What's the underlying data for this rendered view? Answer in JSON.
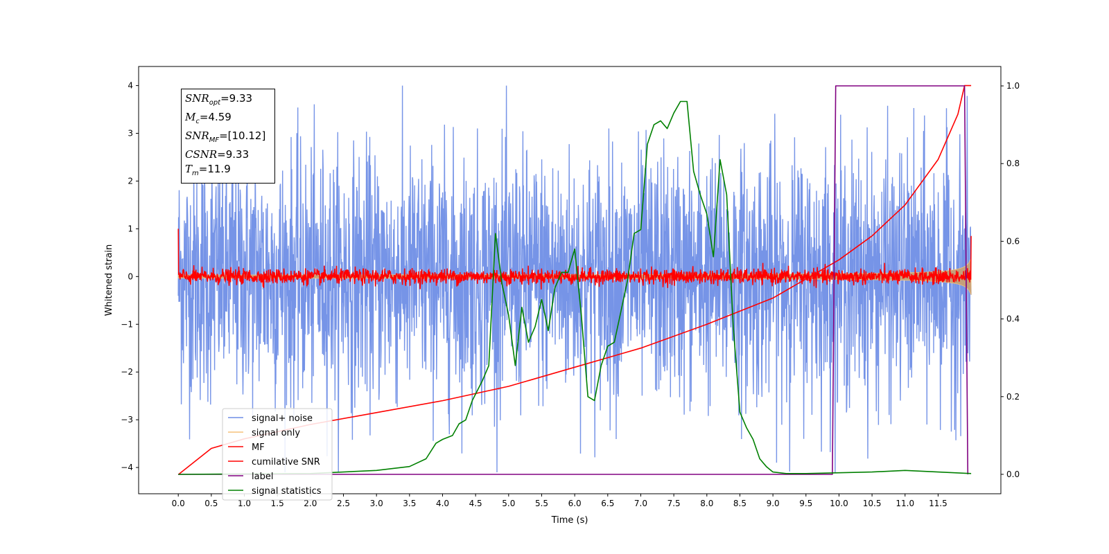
{
  "chart_data": {
    "type": "line",
    "xlabel": "Time (s)",
    "ylabel": "Whitened strain",
    "xlim": [
      -0.6,
      12.45
    ],
    "ylim": [
      -4.55,
      4.4
    ],
    "ylim_right": [
      -0.05,
      1.05
    ],
    "x_ticks": [
      "0.0",
      "0.5",
      "1.0",
      "1.5",
      "2.0",
      "2.5",
      "3.0",
      "3.5",
      "4.0",
      "4.5",
      "5.0",
      "5.5",
      "6.0",
      "6.5",
      "7.0",
      "7.5",
      "8.0",
      "8.5",
      "9.0",
      "9.5",
      "10.0",
      "10.5",
      "11.0",
      "11.5"
    ],
    "y_ticks": [
      "4",
      "3",
      "2",
      "1",
      "0",
      "−1",
      "−2",
      "−3",
      "−4"
    ],
    "y_ticks_right": [
      "1.0",
      "0.8",
      "0.6",
      "0.4",
      "0.2",
      "0.0"
    ],
    "legend_position": "lower-left",
    "legend": [
      {
        "label": "signal+ noise",
        "color": "#6f8ee6"
      },
      {
        "label": "signal only",
        "color": "#f5c27a"
      },
      {
        "label": "MF",
        "color": "#ff0000"
      },
      {
        "label": "cumilative SNR",
        "color": "#ff0000"
      },
      {
        "label": "label",
        "color": "#800080"
      },
      {
        "label": "signal statistics",
        "color": "#008000"
      }
    ],
    "series": [
      {
        "name": "signal+ noise",
        "axis": "left",
        "color": "#6f8ee6",
        "description_range": [
          -4.1,
          4.0
        ],
        "x_range": [
          0.0,
          12.0
        ]
      },
      {
        "name": "signal only",
        "axis": "left",
        "color": "#f5c27a",
        "envelope_end": 0.8,
        "x_range": [
          0.0,
          12.0
        ]
      },
      {
        "name": "MF",
        "axis": "left",
        "color": "#ff0000",
        "amplitude": 0.2,
        "x_range": [
          0.0,
          12.0
        ]
      },
      {
        "name": "cumilative SNR",
        "axis": "left",
        "color": "#ff0000",
        "x": [
          0.0,
          0.5,
          1.0,
          2.0,
          3.0,
          4.0,
          5.0,
          6.0,
          7.0,
          8.0,
          9.0,
          10.0,
          10.5,
          11.0,
          11.5,
          11.8,
          11.9,
          12.0
        ],
        "y": [
          -4.15,
          -3.6,
          -3.4,
          -3.1,
          -2.85,
          -2.6,
          -2.3,
          -1.9,
          -1.5,
          -1.0,
          -0.45,
          0.35,
          0.85,
          1.5,
          2.45,
          3.4,
          4.0,
          4.0
        ]
      },
      {
        "name": "label",
        "axis": "right",
        "color": "#800080",
        "x": [
          0.0,
          9.9,
          9.95,
          11.9,
          11.95
        ],
        "y": [
          0.0,
          0.0,
          1.0,
          1.0,
          0.0
        ]
      },
      {
        "name": "signal statistics",
        "axis": "right",
        "color": "#008000",
        "x": [
          0.0,
          2.0,
          3.0,
          3.5,
          3.75,
          3.9,
          4.0,
          4.15,
          4.25,
          4.35,
          4.45,
          4.6,
          4.7,
          4.8,
          4.9,
          5.0,
          5.1,
          5.2,
          5.3,
          5.4,
          5.5,
          5.6,
          5.7,
          5.8,
          5.9,
          6.0,
          6.1,
          6.2,
          6.3,
          6.4,
          6.5,
          6.6,
          6.7,
          6.8,
          6.9,
          7.0,
          7.1,
          7.2,
          7.3,
          7.4,
          7.5,
          7.6,
          7.7,
          7.8,
          7.9,
          8.0,
          8.1,
          8.2,
          8.3,
          8.4,
          8.5,
          8.6,
          8.7,
          8.8,
          8.9,
          9.0,
          9.2,
          9.5,
          10.0,
          10.5,
          11.0,
          11.5,
          12.0
        ],
        "y": [
          0.0,
          0.002,
          0.01,
          0.02,
          0.04,
          0.08,
          0.09,
          0.1,
          0.13,
          0.14,
          0.19,
          0.24,
          0.28,
          0.62,
          0.49,
          0.41,
          0.28,
          0.43,
          0.34,
          0.38,
          0.45,
          0.37,
          0.48,
          0.52,
          0.52,
          0.58,
          0.41,
          0.2,
          0.19,
          0.28,
          0.33,
          0.34,
          0.42,
          0.5,
          0.62,
          0.63,
          0.85,
          0.9,
          0.91,
          0.89,
          0.93,
          0.96,
          0.96,
          0.78,
          0.72,
          0.67,
          0.56,
          0.81,
          0.72,
          0.38,
          0.16,
          0.12,
          0.09,
          0.04,
          0.02,
          0.006,
          0.002,
          0.002,
          0.004,
          0.006,
          0.01,
          0.006,
          0.002
        ]
      }
    ]
  },
  "annotation": {
    "snr_opt_prefix": "SNR",
    "snr_opt_sub": "opt",
    "snr_opt_value": "=9.33",
    "mc_prefix": "M",
    "mc_sub": "c",
    "mc_value": "=4.59",
    "snr_mf_prefix": "SNR",
    "snr_mf_sub": "MF",
    "snr_mf_value": "=[10.12]",
    "csnr_prefix": "CSNR",
    "csnr_value": "=9.33",
    "tm_prefix": "T",
    "tm_sub": "m",
    "tm_value": "=11.9"
  }
}
